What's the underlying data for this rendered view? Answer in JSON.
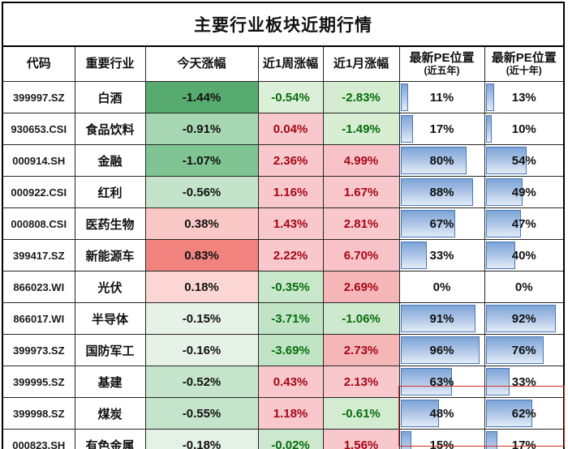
{
  "title": "主要行业板块近期行情",
  "columns": {
    "code": "代码",
    "industry": "重要行业",
    "today": "今天涨幅",
    "week": "近1周涨幅",
    "month": "近1月涨幅",
    "pe5_line1": "最新PE位置",
    "pe5_line2": "(近五年)",
    "pe10_line1": "最新PE位置",
    "pe10_line2": "(近十年)"
  },
  "colors": {
    "positive_text": "#a50715",
    "negative_text": "#076d0d",
    "neutral_text": "#111111",
    "bar_border": "#4a79b8",
    "bar_gradient_top": "#7ca4d7",
    "bar_gradient_bottom": "#e3ecf7",
    "highlight_box": "#cf3126",
    "grid": "#262626"
  },
  "rows": [
    {
      "code": "399997.SZ",
      "industry": "白酒",
      "today": {
        "v": "-1.44%",
        "bg": "#57ab6e"
      },
      "week": {
        "v": "-0.54%",
        "bg": "#dcefd8",
        "fg": "#076d0d"
      },
      "month": {
        "v": "-2.83%",
        "bg": "#d4ecd0",
        "fg": "#076d0d"
      },
      "pe5": {
        "label": "11%",
        "pct": 11
      },
      "pe10": {
        "label": "13%",
        "pct": 13
      }
    },
    {
      "code": "930653.CSI",
      "industry": "食品饮料",
      "today": {
        "v": "-0.91%",
        "bg": "#a6d7b2"
      },
      "week": {
        "v": "0.04%",
        "bg": "#f8c8cd",
        "fg": "#a50715"
      },
      "month": {
        "v": "-1.49%",
        "bg": "#d7eed3",
        "fg": "#076d0d"
      },
      "pe5": {
        "label": "17%",
        "pct": 17
      },
      "pe10": {
        "label": "10%",
        "pct": 10
      }
    },
    {
      "code": "000914.SH",
      "industry": "金融",
      "today": {
        "v": "-1.07%",
        "bg": "#7fc492"
      },
      "week": {
        "v": "2.36%",
        "bg": "#f8c8cd",
        "fg": "#a50715"
      },
      "month": {
        "v": "4.99%",
        "bg": "#f8c3c8",
        "fg": "#a50715"
      },
      "pe5": {
        "label": "80%",
        "pct": 80
      },
      "pe10": {
        "label": "54%",
        "pct": 54
      }
    },
    {
      "code": "000922.CSI",
      "industry": "红利",
      "today": {
        "v": "-0.56%",
        "bg": "#c3e4ca"
      },
      "week": {
        "v": "1.16%",
        "bg": "#f8c8cd",
        "fg": "#a50715"
      },
      "month": {
        "v": "1.67%",
        "bg": "#f8c8cd",
        "fg": "#a50715"
      },
      "pe5": {
        "label": "88%",
        "pct": 88
      },
      "pe10": {
        "label": "49%",
        "pct": 49
      }
    },
    {
      "code": "000808.CSI",
      "industry": "医药生物",
      "today": {
        "v": "0.38%",
        "bg": "#f9c7c5"
      },
      "week": {
        "v": "1.43%",
        "bg": "#f8c8cd",
        "fg": "#a50715"
      },
      "month": {
        "v": "2.81%",
        "bg": "#f8c8cd",
        "fg": "#a50715"
      },
      "pe5": {
        "label": "67%",
        "pct": 67
      },
      "pe10": {
        "label": "47%",
        "pct": 47
      }
    },
    {
      "code": "399417.SZ",
      "industry": "新能源车",
      "today": {
        "v": "0.83%",
        "bg": "#f1837f"
      },
      "week": {
        "v": "2.22%",
        "bg": "#f8c8cd",
        "fg": "#a50715"
      },
      "month": {
        "v": "6.70%",
        "bg": "#f8c3c8",
        "fg": "#a50715"
      },
      "pe5": {
        "label": "33%",
        "pct": 33
      },
      "pe10": {
        "label": "40%",
        "pct": 40
      }
    },
    {
      "code": "866023.WI",
      "industry": "光伏",
      "today": {
        "v": "0.18%",
        "bg": "#fbd6d4"
      },
      "week": {
        "v": "-0.35%",
        "bg": "#c9e7ca",
        "fg": "#076d0d"
      },
      "month": {
        "v": "2.69%",
        "bg": "#f5b6b8",
        "fg": "#a50715"
      },
      "pe5": {
        "label": "0%",
        "pct": 0
      },
      "pe10": {
        "label": "0%",
        "pct": 0
      }
    },
    {
      "code": "866017.WI",
      "industry": "半导体",
      "today": {
        "v": "-0.15%",
        "bg": "#e6f2e8"
      },
      "week": {
        "v": "-3.71%",
        "bg": "#c2e4c6",
        "fg": "#076d0d"
      },
      "month": {
        "v": "-1.06%",
        "bg": "#cfe9cf",
        "fg": "#076d0d"
      },
      "pe5": {
        "label": "91%",
        "pct": 91
      },
      "pe10": {
        "label": "92%",
        "pct": 92
      }
    },
    {
      "code": "399973.SZ",
      "industry": "国防军工",
      "today": {
        "v": "-0.16%",
        "bg": "#e6f2e8"
      },
      "week": {
        "v": "-3.69%",
        "bg": "#c2e4c6",
        "fg": "#076d0d"
      },
      "month": {
        "v": "2.73%",
        "bg": "#f5b6b8",
        "fg": "#a50715"
      },
      "pe5": {
        "label": "96%",
        "pct": 96
      },
      "pe10": {
        "label": "76%",
        "pct": 76
      }
    },
    {
      "code": "399995.SZ",
      "industry": "基建",
      "today": {
        "v": "-0.52%",
        "bg": "#c6e5cd"
      },
      "week": {
        "v": "0.43%",
        "bg": "#f8c8cd",
        "fg": "#a50715"
      },
      "month": {
        "v": "2.13%",
        "bg": "#f8c8cd",
        "fg": "#a50715"
      },
      "pe5": {
        "label": "63%",
        "pct": 63
      },
      "pe10": {
        "label": "33%",
        "pct": 33
      }
    },
    {
      "code": "399998.SZ",
      "industry": "煤炭",
      "today": {
        "v": "-0.55%",
        "bg": "#c5e4cc"
      },
      "week": {
        "v": "1.18%",
        "bg": "#f8c8cd",
        "fg": "#a50715"
      },
      "month": {
        "v": "-0.61%",
        "bg": "#d3ebd1",
        "fg": "#076d0d"
      },
      "pe5": {
        "label": "48%",
        "pct": 48
      },
      "pe10": {
        "label": "62%",
        "pct": 62
      }
    },
    {
      "code": "000823.SH",
      "industry": "有色金属",
      "today": {
        "v": "-0.18%",
        "bg": "#e3f1e6"
      },
      "week": {
        "v": "-0.02%",
        "bg": "#cde8cf",
        "fg": "#076d0d"
      },
      "month": {
        "v": "1.56%",
        "bg": "#f8c8cd",
        "fg": "#a50715"
      },
      "pe5": {
        "label": "15%",
        "pct": 15
      },
      "pe10": {
        "label": "17%",
        "pct": 17
      }
    }
  ],
  "chart_data": {
    "type": "table",
    "title": "主要行业板块近期行情",
    "columns": [
      "代码",
      "重要行业",
      "今天涨幅",
      "近1周涨幅",
      "近1月涨幅",
      "最新PE位置(近五年)",
      "最新PE位置(近十年)"
    ],
    "units": {
      "change_columns": "%",
      "pe_position_columns": "%"
    },
    "rows": [
      [
        "399997.SZ",
        "白酒",
        -1.44,
        -0.54,
        -2.83,
        11,
        13
      ],
      [
        "930653.CSI",
        "食品饮料",
        -0.91,
        0.04,
        -1.49,
        17,
        10
      ],
      [
        "000914.SH",
        "金融",
        -1.07,
        2.36,
        4.99,
        80,
        54
      ],
      [
        "000922.CSI",
        "红利",
        -0.56,
        1.16,
        1.67,
        88,
        49
      ],
      [
        "000808.CSI",
        "医药生物",
        0.38,
        1.43,
        2.81,
        67,
        47
      ],
      [
        "399417.SZ",
        "新能源车",
        0.83,
        2.22,
        6.7,
        33,
        40
      ],
      [
        "866023.WI",
        "光伏",
        0.18,
        -0.35,
        2.69,
        0,
        0
      ],
      [
        "866017.WI",
        "半导体",
        -0.15,
        -3.71,
        -1.06,
        91,
        92
      ],
      [
        "399973.SZ",
        "国防军工",
        -0.16,
        -3.69,
        2.73,
        96,
        76
      ],
      [
        "399995.SZ",
        "基建",
        -0.52,
        0.43,
        2.13,
        63,
        33
      ],
      [
        "399998.SZ",
        "煤炭",
        -0.55,
        1.18,
        -0.61,
        48,
        62
      ],
      [
        "000823.SH",
        "有色金属",
        -0.18,
        -0.02,
        1.56,
        15,
        17
      ]
    ],
    "notes": "今天涨幅/近1周/近1月 cells use red(positive)-green(negative) conditional shading; PE位置 columns rendered as blue gradient data bars; red annotation box highlights PE cells of 煤炭 and 有色金属 rows"
  }
}
